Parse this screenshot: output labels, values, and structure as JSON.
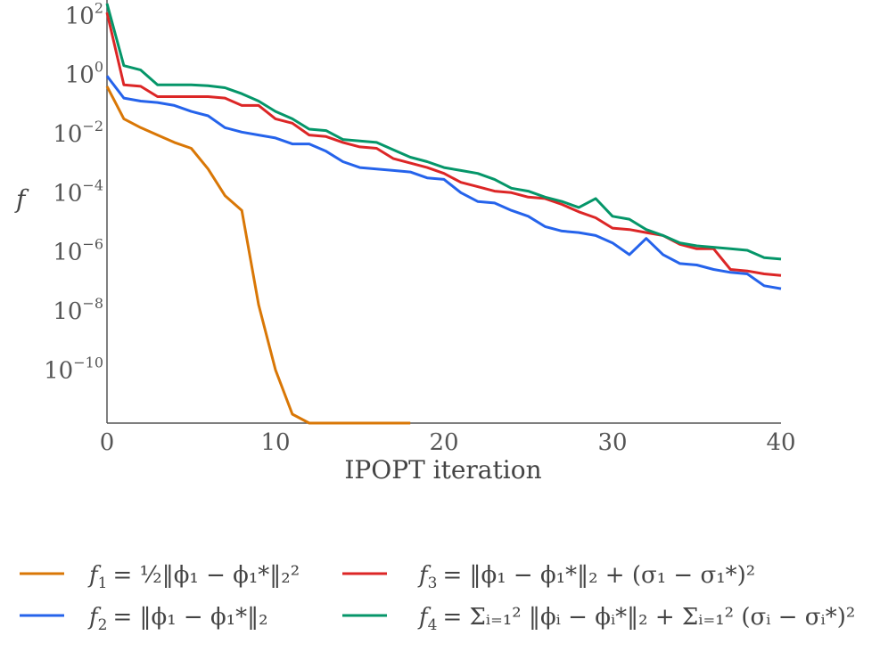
{
  "chart_data": {
    "type": "line",
    "title": "",
    "xlabel": "IPOPT iteration",
    "ylabel": "f",
    "yscale": "log",
    "xlim": [
      0,
      40
    ],
    "ylim_log10": [
      -11.8,
      2.4
    ],
    "xticks": [
      {
        "value": 0,
        "label": "0"
      },
      {
        "value": 10,
        "label": "10"
      },
      {
        "value": 20,
        "label": "20"
      },
      {
        "value": 30,
        "label": "30"
      },
      {
        "value": 40,
        "label": "40"
      }
    ],
    "yticks": [
      {
        "value": 2,
        "base": "10",
        "exp": "2"
      },
      {
        "value": 0,
        "base": "10",
        "exp": "0"
      },
      {
        "value": -2,
        "base": "10",
        "exp": "−2"
      },
      {
        "value": -4,
        "base": "10",
        "exp": "−4"
      },
      {
        "value": -6,
        "base": "10",
        "exp": "−6"
      },
      {
        "value": -8,
        "base": "10",
        "exp": "−8"
      },
      {
        "value": -10,
        "base": "10",
        "exp": "−10"
      }
    ],
    "legend_position": "bottom",
    "series": [
      {
        "name": "f₁ = ½‖ϕ₁ − ϕ₁*‖₂²",
        "color": "#d97706",
        "x": [
          0,
          1,
          2,
          3,
          4,
          5,
          6,
          7,
          8,
          9,
          10,
          11,
          12,
          13,
          14,
          15,
          16,
          17,
          18
        ],
        "log10_y": [
          -0.4,
          -1.5,
          -1.8,
          -2.05,
          -2.3,
          -2.5,
          -3.2,
          -4.1,
          -4.6,
          -7.8,
          -10.0,
          -11.5,
          -11.8,
          -11.8,
          -11.8,
          -11.8,
          -11.8,
          -11.8,
          -11.8
        ]
      },
      {
        "name": "f₂ = ‖ϕ₁ − ϕ₁*‖₂",
        "color": "#2563eb",
        "x": [
          0,
          1,
          2,
          3,
          4,
          5,
          6,
          7,
          8,
          9,
          10,
          11,
          12,
          13,
          14,
          15,
          16,
          17,
          18,
          19,
          20,
          21,
          22,
          23,
          24,
          25,
          26,
          27,
          28,
          29,
          30,
          31,
          32,
          33,
          34,
          35,
          36,
          37,
          38,
          39,
          40
        ],
        "log10_y": [
          -0.05,
          -0.8,
          -0.9,
          -0.95,
          -1.05,
          -1.25,
          -1.4,
          -1.8,
          -1.95,
          -2.05,
          -2.15,
          -2.35,
          -2.35,
          -2.6,
          -2.95,
          -3.15,
          -3.2,
          -3.25,
          -3.3,
          -3.5,
          -3.55,
          -4.0,
          -4.3,
          -4.35,
          -4.6,
          -4.8,
          -5.15,
          -5.3,
          -5.35,
          -5.45,
          -5.7,
          -6.1,
          -5.55,
          -6.1,
          -6.4,
          -6.45,
          -6.6,
          -6.7,
          -6.75,
          -7.15,
          -7.25
        ]
      },
      {
        "name": "f₃ = ‖ϕ₁ − ϕ₁*‖₂ + (σ₁ − σ₁*)²",
        "color": "#dc2626",
        "x": [
          0,
          1,
          2,
          3,
          4,
          5,
          6,
          7,
          8,
          9,
          10,
          11,
          12,
          13,
          14,
          15,
          16,
          17,
          18,
          19,
          20,
          21,
          22,
          23,
          24,
          25,
          26,
          27,
          28,
          29,
          30,
          31,
          32,
          33,
          34,
          35,
          36,
          37,
          38,
          39,
          40
        ],
        "log10_y": [
          2.1,
          -0.35,
          -0.4,
          -0.75,
          -0.75,
          -0.75,
          -0.75,
          -0.8,
          -1.05,
          -1.05,
          -1.5,
          -1.65,
          -2.05,
          -2.1,
          -2.3,
          -2.45,
          -2.5,
          -2.85,
          -3.0,
          -3.15,
          -3.35,
          -3.65,
          -3.8,
          -3.95,
          -4.0,
          -4.15,
          -4.2,
          -4.4,
          -4.65,
          -4.85,
          -5.2,
          -5.25,
          -5.35,
          -5.45,
          -5.75,
          -5.9,
          -5.9,
          -6.6,
          -6.65,
          -6.75,
          -6.8
        ]
      },
      {
        "name": "f₄ = Σᵢ₌₁² ‖ϕᵢ − ϕᵢ*‖₂ + Σᵢ₌₁² (σᵢ − σᵢ*)²",
        "color": "#059669",
        "x": [
          0,
          1,
          2,
          3,
          4,
          5,
          6,
          7,
          8,
          9,
          10,
          11,
          12,
          13,
          14,
          15,
          16,
          17,
          18,
          19,
          20,
          21,
          22,
          23,
          24,
          25,
          26,
          27,
          28,
          29,
          30,
          31,
          32,
          33,
          34,
          35,
          36,
          37,
          38,
          39,
          40
        ],
        "log10_y": [
          2.4,
          0.3,
          0.15,
          -0.35,
          -0.35,
          -0.35,
          -0.38,
          -0.45,
          -0.65,
          -0.9,
          -1.25,
          -1.5,
          -1.85,
          -1.9,
          -2.2,
          -2.25,
          -2.3,
          -2.55,
          -2.8,
          -2.95,
          -3.15,
          -3.25,
          -3.35,
          -3.55,
          -3.85,
          -3.95,
          -4.15,
          -4.3,
          -4.5,
          -4.2,
          -4.8,
          -4.9,
          -5.25,
          -5.45,
          -5.7,
          -5.8,
          -5.85,
          -5.9,
          -5.95,
          -6.2,
          -6.25
        ]
      }
    ]
  },
  "legend": {
    "f1": {
      "sym": "f",
      "sub": "1",
      "rhs": "= ½‖ϕ₁ − ϕ₁*‖₂²"
    },
    "f2": {
      "sym": "f",
      "sub": "2",
      "rhs": "= ‖ϕ₁ − ϕ₁*‖₂"
    },
    "f3": {
      "sym": "f",
      "sub": "3",
      "rhs": "= ‖ϕ₁ − ϕ₁*‖₂ + (σ₁ − σ₁*)²"
    },
    "f4": {
      "sym": "f",
      "sub": "4",
      "rhs": "= Σᵢ₌₁² ‖ϕᵢ − ϕᵢ*‖₂ + Σᵢ₌₁² (σᵢ − σᵢ*)²"
    }
  }
}
